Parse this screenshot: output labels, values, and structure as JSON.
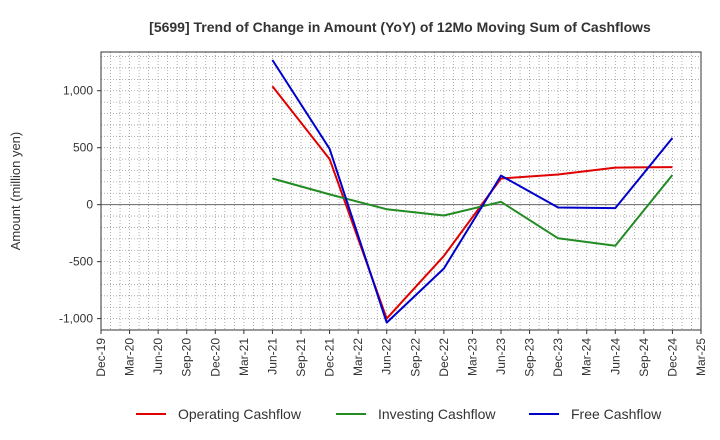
{
  "chart_data": {
    "type": "line",
    "title": "[5699]  Trend of Change in Amount (YoY) of 12Mo Moving Sum of Cashflows",
    "xlabel": "",
    "ylabel": "Amount (million yen)",
    "categories": [
      "Dec-19",
      "Mar-20",
      "Jun-20",
      "Sep-20",
      "Dec-20",
      "Mar-21",
      "Jun-21",
      "Sep-21",
      "Dec-21",
      "Mar-22",
      "Jun-22",
      "Sep-22",
      "Dec-22",
      "Mar-23",
      "Jun-23",
      "Sep-23",
      "Dec-23",
      "Mar-24",
      "Jun-24",
      "Sep-24",
      "Dec-24",
      "Mar-25"
    ],
    "ylim": [
      -1100,
      1340
    ],
    "yticks": [
      1000,
      500,
      0,
      -500,
      -1000
    ],
    "ytick_labels": [
      "1,000",
      "500",
      "0",
      "-500",
      "-1,000"
    ],
    "grid": true,
    "legend_position": "bottom",
    "series": [
      {
        "name": "Operating Cashflow",
        "color": "#e00000",
        "points": [
          {
            "x": "Jun-21",
            "y": 1040
          },
          {
            "x": "Dec-21",
            "y": 400
          },
          {
            "x": "Jun-22",
            "y": -1000
          },
          {
            "x": "Dec-22",
            "y": -450
          },
          {
            "x": "Jun-23",
            "y": 230
          },
          {
            "x": "Dec-23",
            "y": 265
          },
          {
            "x": "Jun-24",
            "y": 325
          },
          {
            "x": "Dec-24",
            "y": 330
          }
        ]
      },
      {
        "name": "Investing Cashflow",
        "color": "#228b22",
        "points": [
          {
            "x": "Jun-21",
            "y": 230
          },
          {
            "x": "Dec-21",
            "y": 90
          },
          {
            "x": "Jun-22",
            "y": -40
          },
          {
            "x": "Dec-22",
            "y": -95
          },
          {
            "x": "Jun-23",
            "y": 25
          },
          {
            "x": "Dec-23",
            "y": -295
          },
          {
            "x": "Jun-24",
            "y": -360
          },
          {
            "x": "Dec-24",
            "y": 260
          }
        ]
      },
      {
        "name": "Free Cashflow",
        "color": "#0000cc",
        "points": [
          {
            "x": "Jun-21",
            "y": 1270
          },
          {
            "x": "Dec-21",
            "y": 490
          },
          {
            "x": "Jun-22",
            "y": -1035
          },
          {
            "x": "Dec-22",
            "y": -560
          },
          {
            "x": "Jun-23",
            "y": 255
          },
          {
            "x": "Dec-23",
            "y": -25
          },
          {
            "x": "Jun-24",
            "y": -30
          },
          {
            "x": "Dec-24",
            "y": 585
          }
        ]
      }
    ]
  }
}
